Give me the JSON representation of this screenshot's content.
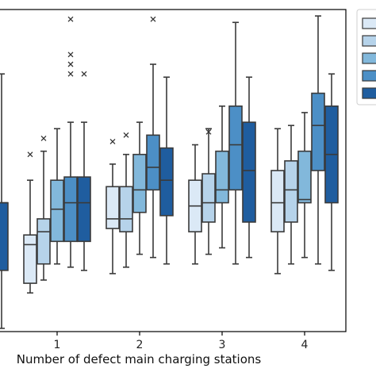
{
  "chart_data": {
    "type": "box",
    "title": "",
    "xlabel": "Number of defect main charging stations",
    "ylabel": "",
    "x_ticks": [
      "1",
      "2",
      "3",
      "4"
    ],
    "y_range": [
      0,
      100
    ],
    "grid": false,
    "legend_position": "top-right (cropped)",
    "legend_entries_visible": false,
    "palette": [
      "#dbe9f6",
      "#b6d3ea",
      "#82b8db",
      "#4c8fc6",
      "#1f5d9f"
    ],
    "groups": [
      {
        "category": "0 (cropped)",
        "boxes": [
          {
            "series": 5,
            "whisker_low": 1,
            "q1": 19,
            "median": 40,
            "q3": 40,
            "whisker_high": 80,
            "outliers": []
          }
        ]
      },
      {
        "category": "1",
        "boxes": [
          {
            "series": 1,
            "whisker_low": 12,
            "q1": 15,
            "median": 27,
            "q3": 30,
            "whisker_high": 47,
            "outliers": [
              55
            ]
          },
          {
            "series": 2,
            "whisker_low": 16,
            "q1": 21,
            "median": 31,
            "q3": 35,
            "whisker_high": 56,
            "outliers": [
              60
            ]
          },
          {
            "series": 3,
            "whisker_low": 21,
            "q1": 28,
            "median": 38,
            "q3": 47,
            "whisker_high": 63,
            "outliers": []
          },
          {
            "series": 4,
            "whisker_low": 20,
            "q1": 28,
            "median": 40,
            "q3": 48,
            "whisker_high": 65,
            "outliers": [
              80,
              83,
              86,
              97
            ]
          },
          {
            "series": 5,
            "whisker_low": 19,
            "q1": 28,
            "median": 40,
            "q3": 48,
            "whisker_high": 65,
            "outliers": [
              80
            ]
          }
        ]
      },
      {
        "category": "2",
        "boxes": [
          {
            "series": 1,
            "whisker_low": 18,
            "q1": 32,
            "median": 35,
            "q3": 45,
            "whisker_high": 52,
            "outliers": [
              59
            ]
          },
          {
            "series": 2,
            "whisker_low": 20,
            "q1": 31,
            "median": 35,
            "q3": 45,
            "whisker_high": 55,
            "outliers": [
              61
            ]
          },
          {
            "series": 3,
            "whisker_low": 24,
            "q1": 37,
            "median": 44,
            "q3": 55,
            "whisker_high": 65,
            "outliers": []
          },
          {
            "series": 4,
            "whisker_low": 23,
            "q1": 44,
            "median": 51,
            "q3": 61,
            "whisker_high": 83,
            "outliers": [
              97
            ]
          },
          {
            "series": 5,
            "whisker_low": 21,
            "q1": 36,
            "median": 47,
            "q3": 57,
            "whisker_high": 79,
            "outliers": []
          }
        ]
      },
      {
        "category": "3",
        "boxes": [
          {
            "series": 1,
            "whisker_low": 21,
            "q1": 31,
            "median": 39,
            "q3": 47,
            "whisker_high": 58,
            "outliers": []
          },
          {
            "series": 2,
            "whisker_low": 24,
            "q1": 34,
            "median": 40,
            "q3": 49,
            "whisker_high": 63,
            "outliers": [
              62
            ]
          },
          {
            "series": 3,
            "whisker_low": 26,
            "q1": 40,
            "median": 44,
            "q3": 56,
            "whisker_high": 70,
            "outliers": []
          },
          {
            "series": 4,
            "whisker_low": 21,
            "q1": 44,
            "median": 58,
            "q3": 70,
            "whisker_high": 96,
            "outliers": []
          },
          {
            "series": 5,
            "whisker_low": 23,
            "q1": 34,
            "median": 50,
            "q3": 65,
            "whisker_high": 79,
            "outliers": []
          }
        ]
      },
      {
        "category": "4",
        "boxes": [
          {
            "series": 1,
            "whisker_low": 18,
            "q1": 31,
            "median": 40,
            "q3": 50,
            "whisker_high": 63,
            "outliers": []
          },
          {
            "series": 2,
            "whisker_low": 21,
            "q1": 34,
            "median": 44,
            "q3": 53,
            "whisker_high": 64,
            "outliers": []
          },
          {
            "series": 3,
            "whisker_low": 23,
            "q1": 40,
            "median": 41,
            "q3": 56,
            "whisker_high": 68,
            "outliers": []
          },
          {
            "series": 4,
            "whisker_low": 21,
            "q1": 50,
            "median": 64,
            "q3": 74,
            "whisker_high": 98,
            "outliers": []
          },
          {
            "series": 5,
            "whisker_low": 19,
            "q1": 40,
            "median": 55,
            "q3": 70,
            "whisker_high": 80,
            "outliers": []
          }
        ]
      }
    ]
  }
}
